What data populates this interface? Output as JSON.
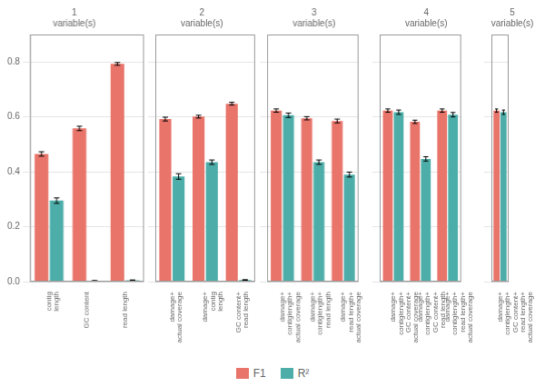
{
  "chart_data": [
    {
      "type": "bar",
      "title": "1\nvariable(s)",
      "categories": [
        "contig\nlength",
        "GC content",
        "read length"
      ],
      "series": [
        {
          "name": "F1",
          "color": "#E8746A",
          "values": [
            0.465,
            0.558,
            0.793
          ],
          "errors": [
            0.008,
            0.008,
            0.005
          ]
        },
        {
          "name": "R²",
          "color": "#4DADA8",
          "values": [
            0.295,
            0.003,
            0.005
          ],
          "errors": [
            0.01,
            0.001,
            0.001
          ]
        }
      ],
      "ylim": [
        0.0,
        0.9
      ],
      "yticks": [
        {
          "value": 0.0,
          "label": "0.0"
        },
        0.2,
        0.4,
        0.6,
        0.8
      ],
      "grid": true,
      "legend": "bottom"
    },
    {
      "type": "bar",
      "title": "2\nvariable(s)",
      "categories": [
        "damage+\nactual coverage",
        "damage+\ncontig\nlength",
        "GC content+\nread length"
      ],
      "series": [
        {
          "name": "F1",
          "color": "#E8746A",
          "values": [
            0.592,
            0.601,
            0.648
          ],
          "errors": [
            0.007,
            0.005,
            0.005
          ]
        },
        {
          "name": "R²",
          "color": "#4DADA8",
          "values": [
            0.383,
            0.435,
            0.006
          ],
          "errors": [
            0.01,
            0.008,
            0.001
          ]
        }
      ],
      "ylim": [
        0.0,
        0.9
      ],
      "yticks": [
        {
          "value": 0.0,
          "label": "0.0"
        },
        0.2,
        0.4,
        0.6,
        0.8
      ],
      "grid": true,
      "tick_labels": "x"
    },
    {
      "type": "bar",
      "title": "3\nvariable(s)",
      "categories": [
        "damage+\ncontiglength+\nactual coverage",
        "damage+\ncontiglength+\nread length",
        "damage+\nread length+\nactual coverage"
      ],
      "series": [
        {
          "name": "F1",
          "color": "#E8746A",
          "values": [
            0.623,
            0.595,
            0.585
          ],
          "errors": [
            0.006,
            0.006,
            0.007
          ]
        },
        {
          "name": "R²",
          "color": "#4DADA8",
          "values": [
            0.606,
            0.435,
            0.39
          ],
          "errors": [
            0.008,
            0.008,
            0.009
          ]
        }
      ],
      "ylim": [
        0.0,
        0.9
      ],
      "yticks": [
        {
          "value": 0.0,
          "label": "0.0"
        },
        0.2,
        0.4,
        0.6,
        0.8
      ],
      "grid": true,
      "tick_labels": "x"
    },
    {
      "type": "bar",
      "title": "4\nvariable(s)",
      "categories": [
        "damage+\ncontiglength+\nGC content+\nactual coverage",
        "damage+\ncontiglength+\nGC content+\nread length",
        "damage+\ncontiglength+\nread length+\nactual coverage"
      ],
      "series": [
        {
          "name": "F1",
          "color": "#E8746A",
          "values": [
            0.623,
            0.582,
            0.623
          ],
          "errors": [
            0.006,
            0.006,
            0.006
          ]
        },
        {
          "name": "R²",
          "color": "#4DADA8",
          "values": [
            0.617,
            0.447,
            0.608
          ],
          "errors": [
            0.008,
            0.008,
            0.008
          ]
        }
      ],
      "ylim": [
        0.0,
        0.9
      ],
      "yticks": [
        {
          "value": 0.0,
          "label": "0.0"
        },
        0.2,
        0.4,
        0.6,
        0.8
      ],
      "grid": true,
      "tick_labels": "x"
    },
    {
      "type": "bar",
      "title": "5\nvariable(s)",
      "categories": [
        "damage+\ncontiglength+\nGC content+\nread length+\nactual coverage"
      ],
      "series": [
        {
          "name": "F1",
          "color": "#E8746A",
          "values": [
            0.623
          ],
          "errors": [
            0.006
          ]
        },
        {
          "name": "R²",
          "color": "#4DADA8",
          "values": [
            0.617
          ],
          "errors": [
            0.008
          ]
        }
      ],
      "ylim": [
        0.0,
        0.9
      ],
      "yticks": [
        {
          "value": 0.0,
          "label": "0.0"
        },
        0.2,
        0.4,
        0.6,
        0.8
      ],
      "grid": true,
      "tick_labels": "x"
    }
  ]
}
